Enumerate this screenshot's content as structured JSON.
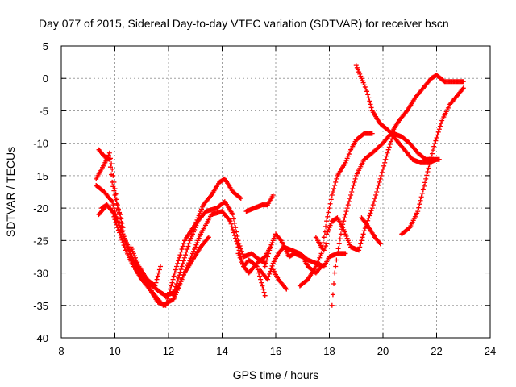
{
  "chart_data": {
    "type": "scatter",
    "title": "Day 077 of 2015, Sidereal Day-to-day VTEC variation (SDTVAR) for receiver bscn",
    "xlabel": "GPS time / hours",
    "ylabel": "SDTVAR / TECUs",
    "xlim": [
      8,
      24
    ],
    "ylim": [
      -40,
      5
    ],
    "xticks": [
      8,
      10,
      12,
      14,
      16,
      18,
      20,
      22,
      24
    ],
    "yticks": [
      5,
      0,
      -5,
      -10,
      -15,
      -20,
      -25,
      -30,
      -35,
      -40
    ],
    "grid": true,
    "marker": "plus",
    "color": "#ff0000",
    "series": [
      {
        "values": [
          [
            9.3,
            -16.5
          ],
          [
            9.6,
            -17.5
          ],
          [
            9.9,
            -19
          ],
          [
            10.1,
            -22
          ],
          [
            10.3,
            -24
          ],
          [
            10.5,
            -26
          ],
          [
            10.7,
            -28
          ],
          [
            11.0,
            -30
          ],
          [
            11.4,
            -33
          ],
          [
            11.8,
            -35
          ],
          [
            12.2,
            -34
          ],
          [
            12.5,
            -31
          ],
          [
            12.9,
            -27
          ],
          [
            13.2,
            -24
          ],
          [
            13.6,
            -21
          ],
          [
            14.0,
            -20.5
          ],
          [
            14.3,
            -22
          ],
          [
            14.6,
            -26
          ],
          [
            14.8,
            -29
          ],
          [
            15.0,
            -28
          ],
          [
            15.3,
            -29
          ],
          [
            15.6,
            -33.5
          ]
        ]
      },
      {
        "values": [
          [
            9.4,
            -21
          ],
          [
            9.7,
            -19.5
          ],
          [
            10.0,
            -21
          ],
          [
            10.3,
            -24
          ],
          [
            10.6,
            -27.5
          ],
          [
            11.0,
            -30.5
          ],
          [
            11.4,
            -32
          ],
          [
            11.7,
            -33
          ],
          [
            11.9,
            -33.5
          ],
          [
            12.2,
            -33
          ],
          [
            12.5,
            -29
          ],
          [
            12.8,
            -25
          ],
          [
            13.1,
            -22
          ],
          [
            13.4,
            -20.5
          ],
          [
            13.8,
            -20
          ],
          [
            14.1,
            -19
          ],
          [
            14.4,
            -21
          ],
          [
            14.6,
            -25
          ],
          [
            14.8,
            -27.5
          ],
          [
            15.1,
            -27
          ],
          [
            15.4,
            -28
          ],
          [
            15.6,
            -28.5
          ]
        ]
      },
      {
        "values": [
          [
            9.5,
            -20
          ],
          [
            9.7,
            -19.5
          ],
          [
            9.9,
            -20.5
          ],
          [
            10.1,
            -23
          ],
          [
            10.4,
            -26.5
          ],
          [
            10.7,
            -29
          ],
          [
            11.0,
            -31
          ],
          [
            11.3,
            -32.5
          ],
          [
            11.6,
            -34.5
          ],
          [
            11.9,
            -35
          ],
          [
            12.1,
            -32
          ],
          [
            12.3,
            -29
          ],
          [
            12.6,
            -25
          ],
          [
            13.0,
            -22.5
          ],
          [
            13.3,
            -19.5
          ],
          [
            13.6,
            -18
          ],
          [
            13.9,
            -16
          ],
          [
            14.1,
            -15.5
          ],
          [
            14.4,
            -17.5
          ],
          [
            14.7,
            -18.5
          ]
        ]
      },
      {
        "values": [
          [
            9.3,
            -15.5
          ],
          [
            9.5,
            -14
          ],
          [
            9.7,
            -12.5
          ],
          [
            9.8,
            -11.5
          ],
          [
            9.9,
            -14
          ],
          [
            10.0,
            -17
          ],
          [
            10.1,
            -19.5
          ],
          [
            10.2,
            -21.5
          ],
          [
            10.3,
            -23.5
          ]
        ]
      },
      {
        "values": [
          [
            9.4,
            -11
          ],
          [
            9.6,
            -12
          ],
          [
            9.8,
            -12.5
          ],
          [
            9.9,
            -16
          ],
          [
            10.1,
            -20
          ],
          [
            10.2,
            -21
          ],
          [
            10.3,
            -23
          ]
        ]
      },
      {
        "values": [
          [
            10.6,
            -26
          ],
          [
            10.9,
            -29
          ],
          [
            11.2,
            -31
          ],
          [
            11.5,
            -32
          ],
          [
            11.7,
            -29
          ]
        ]
      },
      {
        "values": [
          [
            12.2,
            -33.5
          ],
          [
            12.6,
            -30
          ],
          [
            12.9,
            -28
          ],
          [
            13.2,
            -26
          ],
          [
            13.5,
            -24.5
          ]
        ]
      },
      {
        "values": [
          [
            14.6,
            -27
          ],
          [
            14.8,
            -29
          ],
          [
            15.0,
            -30
          ],
          [
            15.3,
            -28.5
          ],
          [
            15.6,
            -27.5
          ],
          [
            15.8,
            -26
          ]
        ]
      },
      {
        "values": [
          [
            14.9,
            -20.5
          ],
          [
            15.2,
            -20
          ],
          [
            15.5,
            -19.5
          ],
          [
            15.7,
            -19.5
          ],
          [
            15.9,
            -18
          ]
        ]
      },
      {
        "values": [
          [
            15.4,
            -29.5
          ],
          [
            15.7,
            -31
          ],
          [
            15.9,
            -28.5
          ],
          [
            16.1,
            -27
          ],
          [
            16.3,
            -26
          ],
          [
            16.6,
            -26.5
          ],
          [
            16.9,
            -27
          ],
          [
            17.2,
            -28
          ],
          [
            17.5,
            -28.5
          ],
          [
            17.8,
            -29
          ],
          [
            18.0,
            -27.5
          ],
          [
            18.3,
            -27
          ],
          [
            18.6,
            -27
          ]
        ]
      },
      {
        "values": [
          [
            15.6,
            -29
          ],
          [
            15.8,
            -26
          ],
          [
            16.0,
            -24
          ],
          [
            16.2,
            -25
          ],
          [
            16.5,
            -27.5
          ],
          [
            16.7,
            -27
          ],
          [
            17.0,
            -27.5
          ],
          [
            17.2,
            -29
          ],
          [
            17.5,
            -30
          ],
          [
            17.7,
            -29
          ]
        ]
      },
      {
        "values": [
          [
            15.9,
            -29.5
          ],
          [
            16.1,
            -31
          ],
          [
            16.4,
            -32.5
          ]
        ]
      },
      {
        "values": [
          [
            16.9,
            -32
          ],
          [
            17.2,
            -31
          ],
          [
            17.5,
            -29
          ],
          [
            17.7,
            -27
          ],
          [
            17.9,
            -22
          ],
          [
            18.1,
            -18
          ],
          [
            18.3,
            -15
          ],
          [
            18.6,
            -13
          ],
          [
            18.8,
            -11
          ],
          [
            19.0,
            -9.5
          ],
          [
            19.3,
            -8.5
          ],
          [
            19.6,
            -8.5
          ]
        ]
      },
      {
        "values": [
          [
            17.5,
            -24.5
          ],
          [
            17.7,
            -26
          ],
          [
            17.8,
            -26.5
          ],
          [
            17.9,
            -25.5
          ]
        ]
      },
      {
        "values": [
          [
            18.1,
            -35
          ],
          [
            18.2,
            -30
          ],
          [
            18.3,
            -27
          ],
          [
            18.5,
            -22.5
          ],
          [
            18.8,
            -18
          ],
          [
            19.0,
            -15
          ],
          [
            19.3,
            -12.5
          ],
          [
            19.6,
            -11.5
          ],
          [
            20.0,
            -10
          ],
          [
            20.3,
            -8.5
          ],
          [
            20.6,
            -6.5
          ],
          [
            20.9,
            -5
          ],
          [
            21.2,
            -3
          ],
          [
            21.5,
            -1.5
          ],
          [
            21.8,
            0
          ],
          [
            22.0,
            0.5
          ],
          [
            22.3,
            -0.5
          ],
          [
            22.7,
            -0.5
          ],
          [
            23.0,
            -0.5
          ]
        ]
      },
      {
        "values": [
          [
            17.9,
            -24
          ],
          [
            18.1,
            -22
          ],
          [
            18.3,
            -21.5
          ],
          [
            18.5,
            -23
          ],
          [
            18.8,
            -26
          ],
          [
            19.1,
            -26.5
          ],
          [
            19.3,
            -23.5
          ],
          [
            19.6,
            -20
          ],
          [
            19.9,
            -15.5
          ],
          [
            20.2,
            -11
          ],
          [
            20.4,
            -8.5
          ],
          [
            20.7,
            -9
          ],
          [
            21.0,
            -10
          ],
          [
            21.3,
            -11.5
          ],
          [
            21.6,
            -12.5
          ],
          [
            21.9,
            -12.5
          ],
          [
            22.1,
            -12.5
          ]
        ]
      },
      {
        "values": [
          [
            19.0,
            2
          ],
          [
            19.2,
            0
          ],
          [
            19.4,
            -2
          ],
          [
            19.6,
            -5
          ],
          [
            19.9,
            -7
          ],
          [
            20.2,
            -8
          ],
          [
            20.5,
            -9.5
          ],
          [
            20.8,
            -11
          ],
          [
            21.1,
            -12.5
          ],
          [
            21.4,
            -13
          ],
          [
            21.7,
            -13
          ],
          [
            22.0,
            -12.5
          ]
        ]
      },
      {
        "values": [
          [
            19.2,
            -21.5
          ],
          [
            19.4,
            -22.5
          ],
          [
            19.7,
            -24.5
          ],
          [
            19.9,
            -25.5
          ]
        ]
      },
      {
        "values": [
          [
            20.7,
            -24
          ],
          [
            21.0,
            -23
          ],
          [
            21.3,
            -20.5
          ],
          [
            21.6,
            -15.5
          ],
          [
            21.9,
            -10.5
          ],
          [
            22.2,
            -6.5
          ],
          [
            22.5,
            -4
          ],
          [
            22.8,
            -2.5
          ],
          [
            23.0,
            -1.5
          ]
        ]
      }
    ]
  }
}
